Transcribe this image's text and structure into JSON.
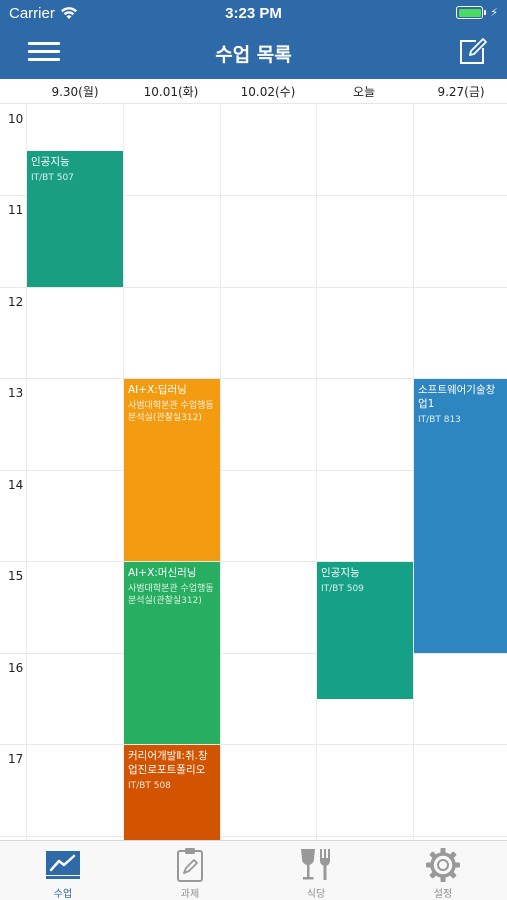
{
  "status_bar": {
    "carrier": "Carrier",
    "time": "3:23 PM"
  },
  "header": {
    "title": "수업 목록",
    "menu_icon": "hamburger-menu-icon",
    "edit_icon": "edit-note-icon"
  },
  "days": [
    "9.30(월)",
    "10.01(화)",
    "10.02(수)",
    "오늘",
    "9.27(금)"
  ],
  "hours": [
    "10",
    "11",
    "12",
    "13",
    "14",
    "15",
    "16",
    "17"
  ],
  "events": [
    {
      "name": "인공지능",
      "location": "IT/BT 507",
      "color": "#1a9e82"
    },
    {
      "name": "AI+X:딥러닝",
      "location": "사범대학본관 수업행동분석실(관찰실312)",
      "color": "#f39c12"
    },
    {
      "name": "AI+X:머신러닝",
      "location": "사범대학본관 수업행동분석실(관찰실312)",
      "color": "#27ae60"
    },
    {
      "name": "커리어개발Ⅱ:취.창업진로포트폴리오",
      "location": "IT/BT 508",
      "color": "#d35400"
    },
    {
      "name": "인공지능",
      "location": "IT/BT 509",
      "color": "#16a085"
    },
    {
      "name": "소프트웨어기술창업1",
      "location": "IT/BT 813",
      "color": "#2e86c1"
    }
  ],
  "tabs": [
    {
      "label": "수업",
      "icon": "chart-icon",
      "active": true
    },
    {
      "label": "과제",
      "icon": "clipboard-icon",
      "active": false
    },
    {
      "label": "식당",
      "icon": "cutlery-icon",
      "active": false
    },
    {
      "label": "설정",
      "icon": "gear-icon",
      "active": false
    }
  ],
  "colors": {
    "header": "#2e6aa8",
    "active_tab": "#2e6aa8",
    "inactive_tab": "#8f8f8f"
  }
}
